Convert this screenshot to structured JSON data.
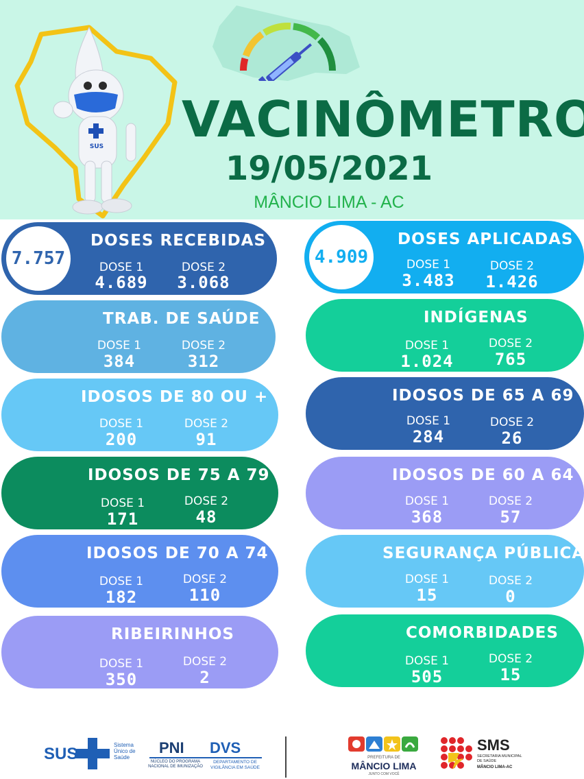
{
  "header": {
    "title": "VACINÔMETRO",
    "date": "19/05/2021",
    "location": "MÂNCIO LIMA - AC",
    "mascot_badge": "SUS"
  },
  "colors": {
    "header_bg": "#c9f6e7",
    "title_green": "#0b6b45",
    "city_green": "#22b24c"
  },
  "cards": {
    "recebidas": {
      "title": "DOSES RECEBIDAS",
      "total": "7.757",
      "d1_label": "DOSE 1",
      "d1": "4.689",
      "d2_label": "DOSE 2",
      "d2": "3.068",
      "color": "#2f64ad"
    },
    "aplicadas": {
      "title": "DOSES APLICADAS",
      "total": "4.909",
      "d1_label": "DOSE 1",
      "d1": "3.483",
      "d2_label": "DOSE 2",
      "d2": "1.426",
      "color": "#12aef0"
    },
    "trab_saude": {
      "title": "TRAB. DE SAÚDE",
      "d1_label": "DOSE 1",
      "d1": "384",
      "d2_label": "DOSE 2",
      "d2": "312",
      "color": "#5fb2e2"
    },
    "indigenas": {
      "title": "INDÍGENAS",
      "d1_label": "DOSE 1",
      "d1": "1.024",
      "d2_label": "DOSE 2",
      "d2": "765",
      "color": "#14cf9a"
    },
    "idosos_80": {
      "title": "IDOSOS DE 80 OU +",
      "d1_label": "DOSE 1",
      "d1": "200",
      "d2_label": "DOSE 2",
      "d2": "91",
      "color": "#66c8f6"
    },
    "idosos_65": {
      "title": "IDOSOS DE 65 A 69",
      "d1_label": "DOSE 1",
      "d1": "284",
      "d2_label": "DOSE 2",
      "d2": "26",
      "color": "#2f64ad"
    },
    "idosos_75": {
      "title": "IDOSOS DE 75 A 79",
      "d1_label": "DOSE 1",
      "d1": "171",
      "d2_label": "DOSE 2",
      "d2": "48",
      "color": "#0c8c5e"
    },
    "idosos_60": {
      "title": "IDOSOS DE 60 A 64",
      "d1_label": "DOSE 1",
      "d1": "368",
      "d2_label": "DOSE 2",
      "d2": "57",
      "color": "#9b9cf5"
    },
    "idosos_70": {
      "title": "IDOSOS DE 70 A 74",
      "d1_label": "DOSE 1",
      "d1": "182",
      "d2_label": "DOSE 2",
      "d2": "110",
      "color": "#5d8fef"
    },
    "seguranca": {
      "title": "SEGURANÇA PÚBLICA",
      "d1_label": "DOSE 1",
      "d1": "15",
      "d2_label": "DOSE 2",
      "d2": "0",
      "color": "#66c8f6"
    },
    "ribeirinhos": {
      "title": "RIBEIRINHOS",
      "d1_label": "DOSE 1",
      "d1": "350",
      "d2_label": "DOSE 2",
      "d2": "2",
      "color": "#9b9cf5"
    },
    "comorbidades": {
      "title": "COMORBIDADES",
      "d1_label": "DOSE 1",
      "d1": "505",
      "d2_label": "DOSE 2",
      "d2": "15",
      "color": "#14cf9a"
    }
  },
  "footer": {
    "sus": "SUS",
    "sus_sub": "Sistema Único de Saúde",
    "pni": "PNI",
    "pni_sub": "NÚCLEO DO PROGRAMA NACIONAL DE IMUNIZAÇÃO",
    "dvs": "DVS",
    "dvs_sub": "DEPARTAMENTO DE VIGILÂNCIA EM SAÚDE",
    "prefeitura_small": "PREFEITURA DE",
    "prefeitura": "MÂNCIO LIMA",
    "prefeitura_tag": "JUNTO COM VOCÊ",
    "sms": "SMS",
    "sms_sub": "SECRETARIA MUNICIPAL DE SAÚDE",
    "sms_city": "MÂNCIO LIMA-AC"
  }
}
